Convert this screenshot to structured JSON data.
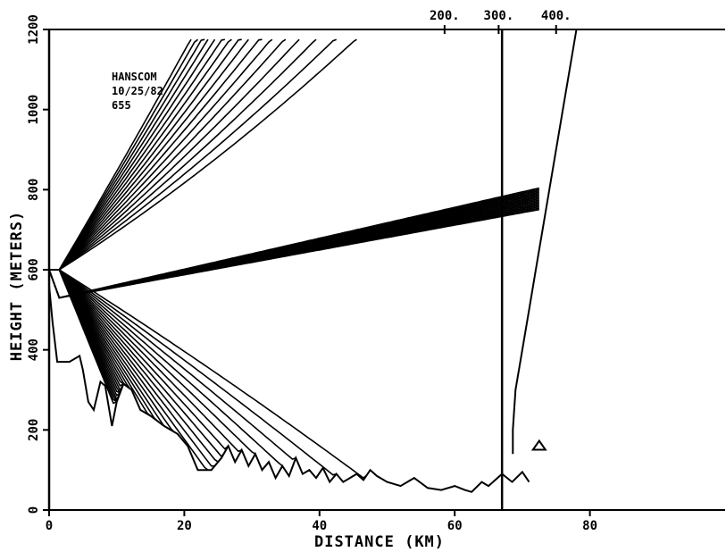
{
  "chart_data": {
    "type": "line",
    "title": "",
    "xlabel": "DISTANCE (KM)",
    "ylabel": "HEIGHT (METERS)",
    "xlim": [
      0,
      100
    ],
    "ylim": [
      0,
      1200
    ],
    "x_ticks": [
      0,
      20,
      40,
      60,
      80
    ],
    "y_ticks": [
      0,
      200,
      400,
      600,
      800,
      1000,
      1200
    ],
    "grid": false,
    "annotation": [
      "HANSCOM",
      "10/25/82",
      "655"
    ],
    "top_axis": {
      "ticks": [
        {
          "label": "200.",
          "x": 58.5
        },
        {
          "label": "300.",
          "x": 66.5
        },
        {
          "label": "400.",
          "x": 75
        }
      ]
    },
    "transmitter": {
      "x": 0,
      "height": 600
    },
    "ray_count": 60,
    "range_marker_x": 67,
    "ray_end_x": 72.5,
    "terrain": {
      "x": [
        0,
        0.5,
        1.2,
        3,
        4.5,
        5,
        5.8,
        6.6,
        7.6,
        8.3,
        9.3,
        10,
        11,
        12.2,
        13.5,
        15,
        17,
        19,
        20.5,
        22,
        24,
        25.5,
        26.5,
        27.5,
        28.5,
        29.5,
        30.5,
        31.5,
        32.5,
        33.5,
        34.5,
        35.5,
        36.5,
        37.5,
        38.5,
        39.5,
        40.5,
        41.5,
        42.5,
        43.5,
        44.5,
        45.5,
        46.5,
        47.5,
        48.5,
        50,
        52,
        54,
        56,
        58,
        60,
        61.5,
        62.5,
        64,
        65,
        66,
        67,
        68.5,
        70,
        71
      ],
      "y": [
        560,
        470,
        370,
        370,
        385,
        350,
        270,
        250,
        320,
        310,
        210,
        270,
        315,
        300,
        250,
        235,
        210,
        190,
        160,
        100,
        100,
        130,
        160,
        120,
        150,
        110,
        140,
        100,
        120,
        80,
        110,
        85,
        130,
        90,
        100,
        80,
        105,
        70,
        90,
        70,
        80,
        90,
        75,
        100,
        85,
        70,
        60,
        80,
        55,
        50,
        60,
        50,
        45,
        70,
        60,
        75,
        90,
        70,
        95,
        70
      ]
    },
    "reference_curve": {
      "x": [
        78,
        76,
        73,
        72,
        71,
        70,
        69,
        68.6,
        68.6
      ],
      "y": [
        1200,
        1000,
        700,
        600,
        500,
        400,
        300,
        200,
        140
      ]
    }
  }
}
